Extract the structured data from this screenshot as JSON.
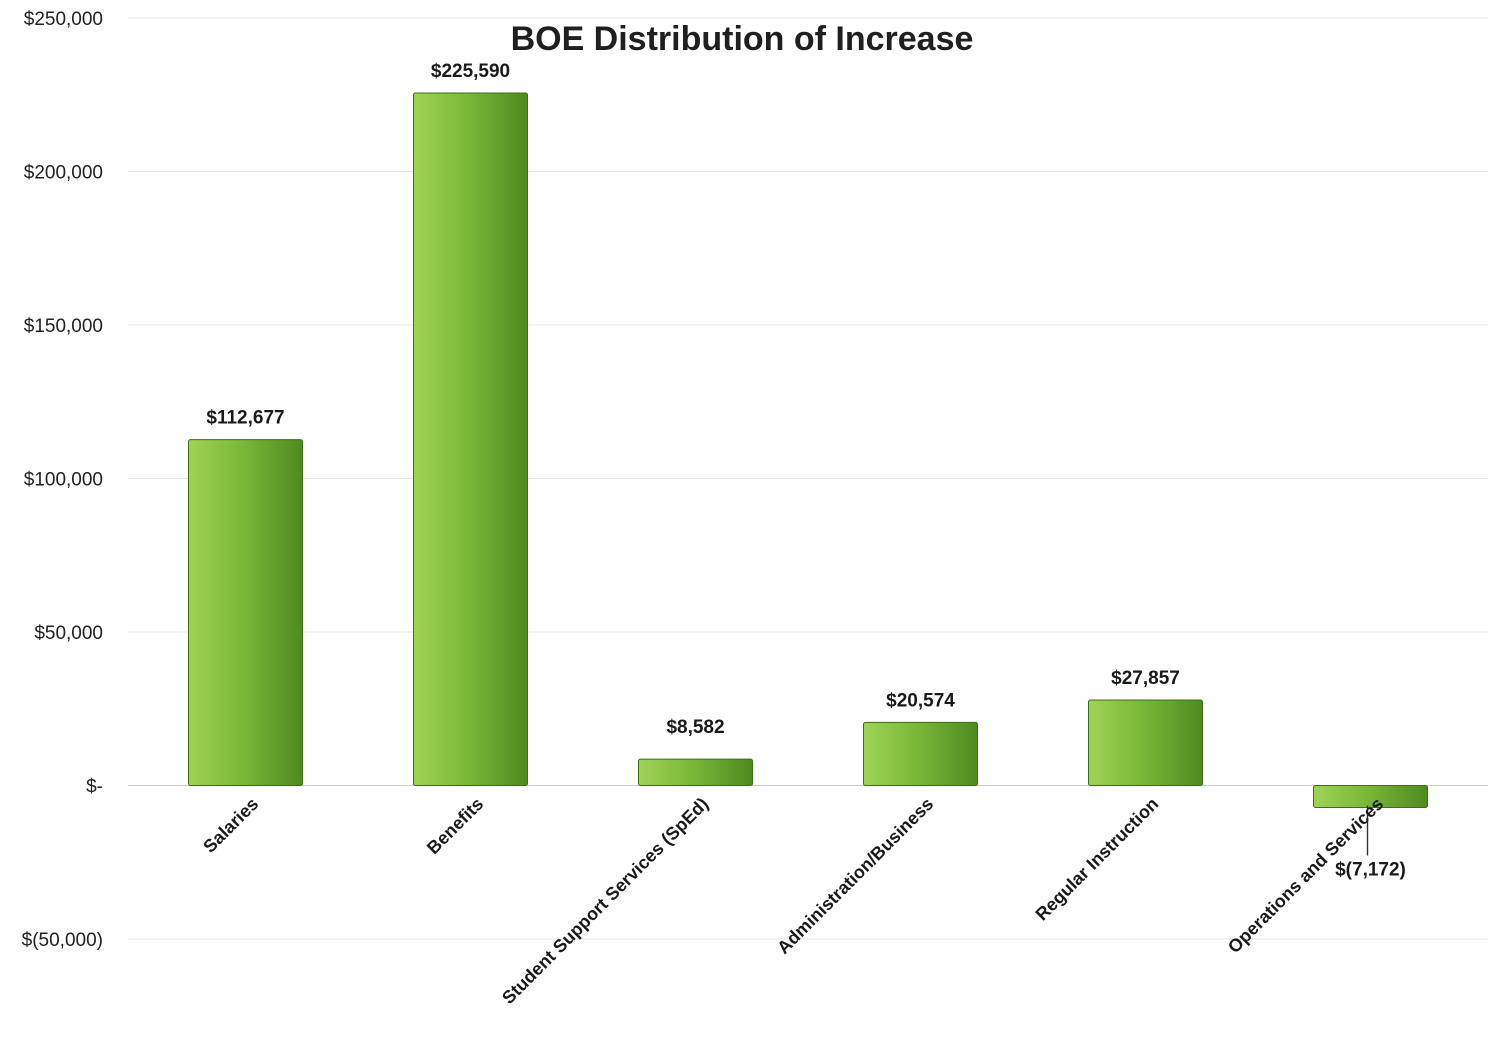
{
  "chart_data": {
    "type": "bar",
    "title": "BOE Distribution of Increase",
    "xlabel": "",
    "ylabel": "",
    "categories": [
      "Salaries",
      "Benefits",
      "Student Support Services (SpEd)",
      "Administration/Business",
      "Regular Instruction",
      "Operations and Services"
    ],
    "values": [
      112677,
      225590,
      8582,
      20574,
      27857,
      -7172
    ],
    "data_labels": [
      "$112,677",
      "$225,590",
      "$8,582",
      "$20,574",
      "$27,857",
      "$(7,172)"
    ],
    "ylim": [
      -50000,
      250000
    ],
    "yticks": [
      250000,
      200000,
      150000,
      100000,
      50000,
      0,
      -50000
    ],
    "ytick_labels": [
      "$250,000",
      "$200,000",
      "$150,000",
      "$100,000",
      "$50,000",
      "$-",
      "$(50,000)"
    ],
    "grid": true,
    "legend": "none",
    "colors": {
      "bar_light": "#9fd357",
      "bar_mid": "#7bb93a",
      "bar_dark": "#4f8a1f",
      "edge": "#3d6e15"
    }
  }
}
